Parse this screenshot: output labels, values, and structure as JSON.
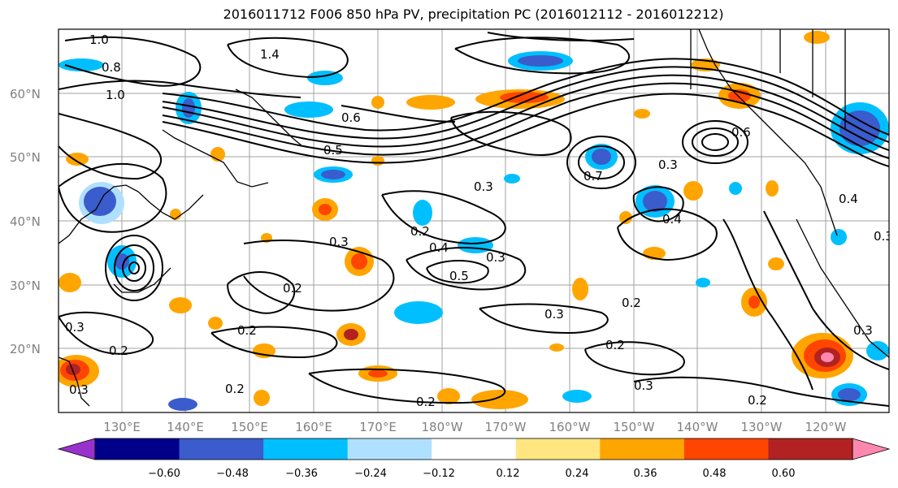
{
  "title": "2016011712 F006 850 hPa PV, precipitation PC (2016012112 - 2016012212)",
  "map": {
    "lon_labels": [
      "130°E",
      "140°E",
      "150°E",
      "160°E",
      "170°E",
      "180°W",
      "170°W",
      "160°W",
      "150°W",
      "140°W",
      "130°W",
      "120°W"
    ],
    "lat_labels": [
      "60°N",
      "50°N",
      "40°N",
      "30°N",
      "20°N"
    ],
    "contour_labels": [
      "1.0",
      "0.8",
      "1.0",
      "1.4",
      "0.6",
      "0.5",
      "0.3",
      "0.2",
      "0.3",
      "0.4",
      "0.5",
      "0.3",
      "0.2",
      "0.3",
      "0.2",
      "0.3",
      "0.2",
      "0.3",
      "0.2",
      "0.2",
      "0.7",
      "0.3",
      "0.3",
      "0.4",
      "0.2",
      "0.3",
      "0.2",
      "0.4",
      "0.3",
      "0.2",
      "0.6"
    ]
  },
  "colorbar": {
    "colors": [
      "#9932cc",
      "#00008b",
      "#3a5ccc",
      "#00bfff",
      "#b0e0ff",
      "#ffffff",
      "#ffe680",
      "#ffa500",
      "#ff4500",
      "#b22222",
      "#ff88b0"
    ],
    "tick_labels": [
      "−0.60",
      "−0.48",
      "−0.36",
      "−0.24",
      "−0.12",
      "0.12",
      "0.24",
      "0.36",
      "0.48",
      "0.60"
    ]
  }
}
